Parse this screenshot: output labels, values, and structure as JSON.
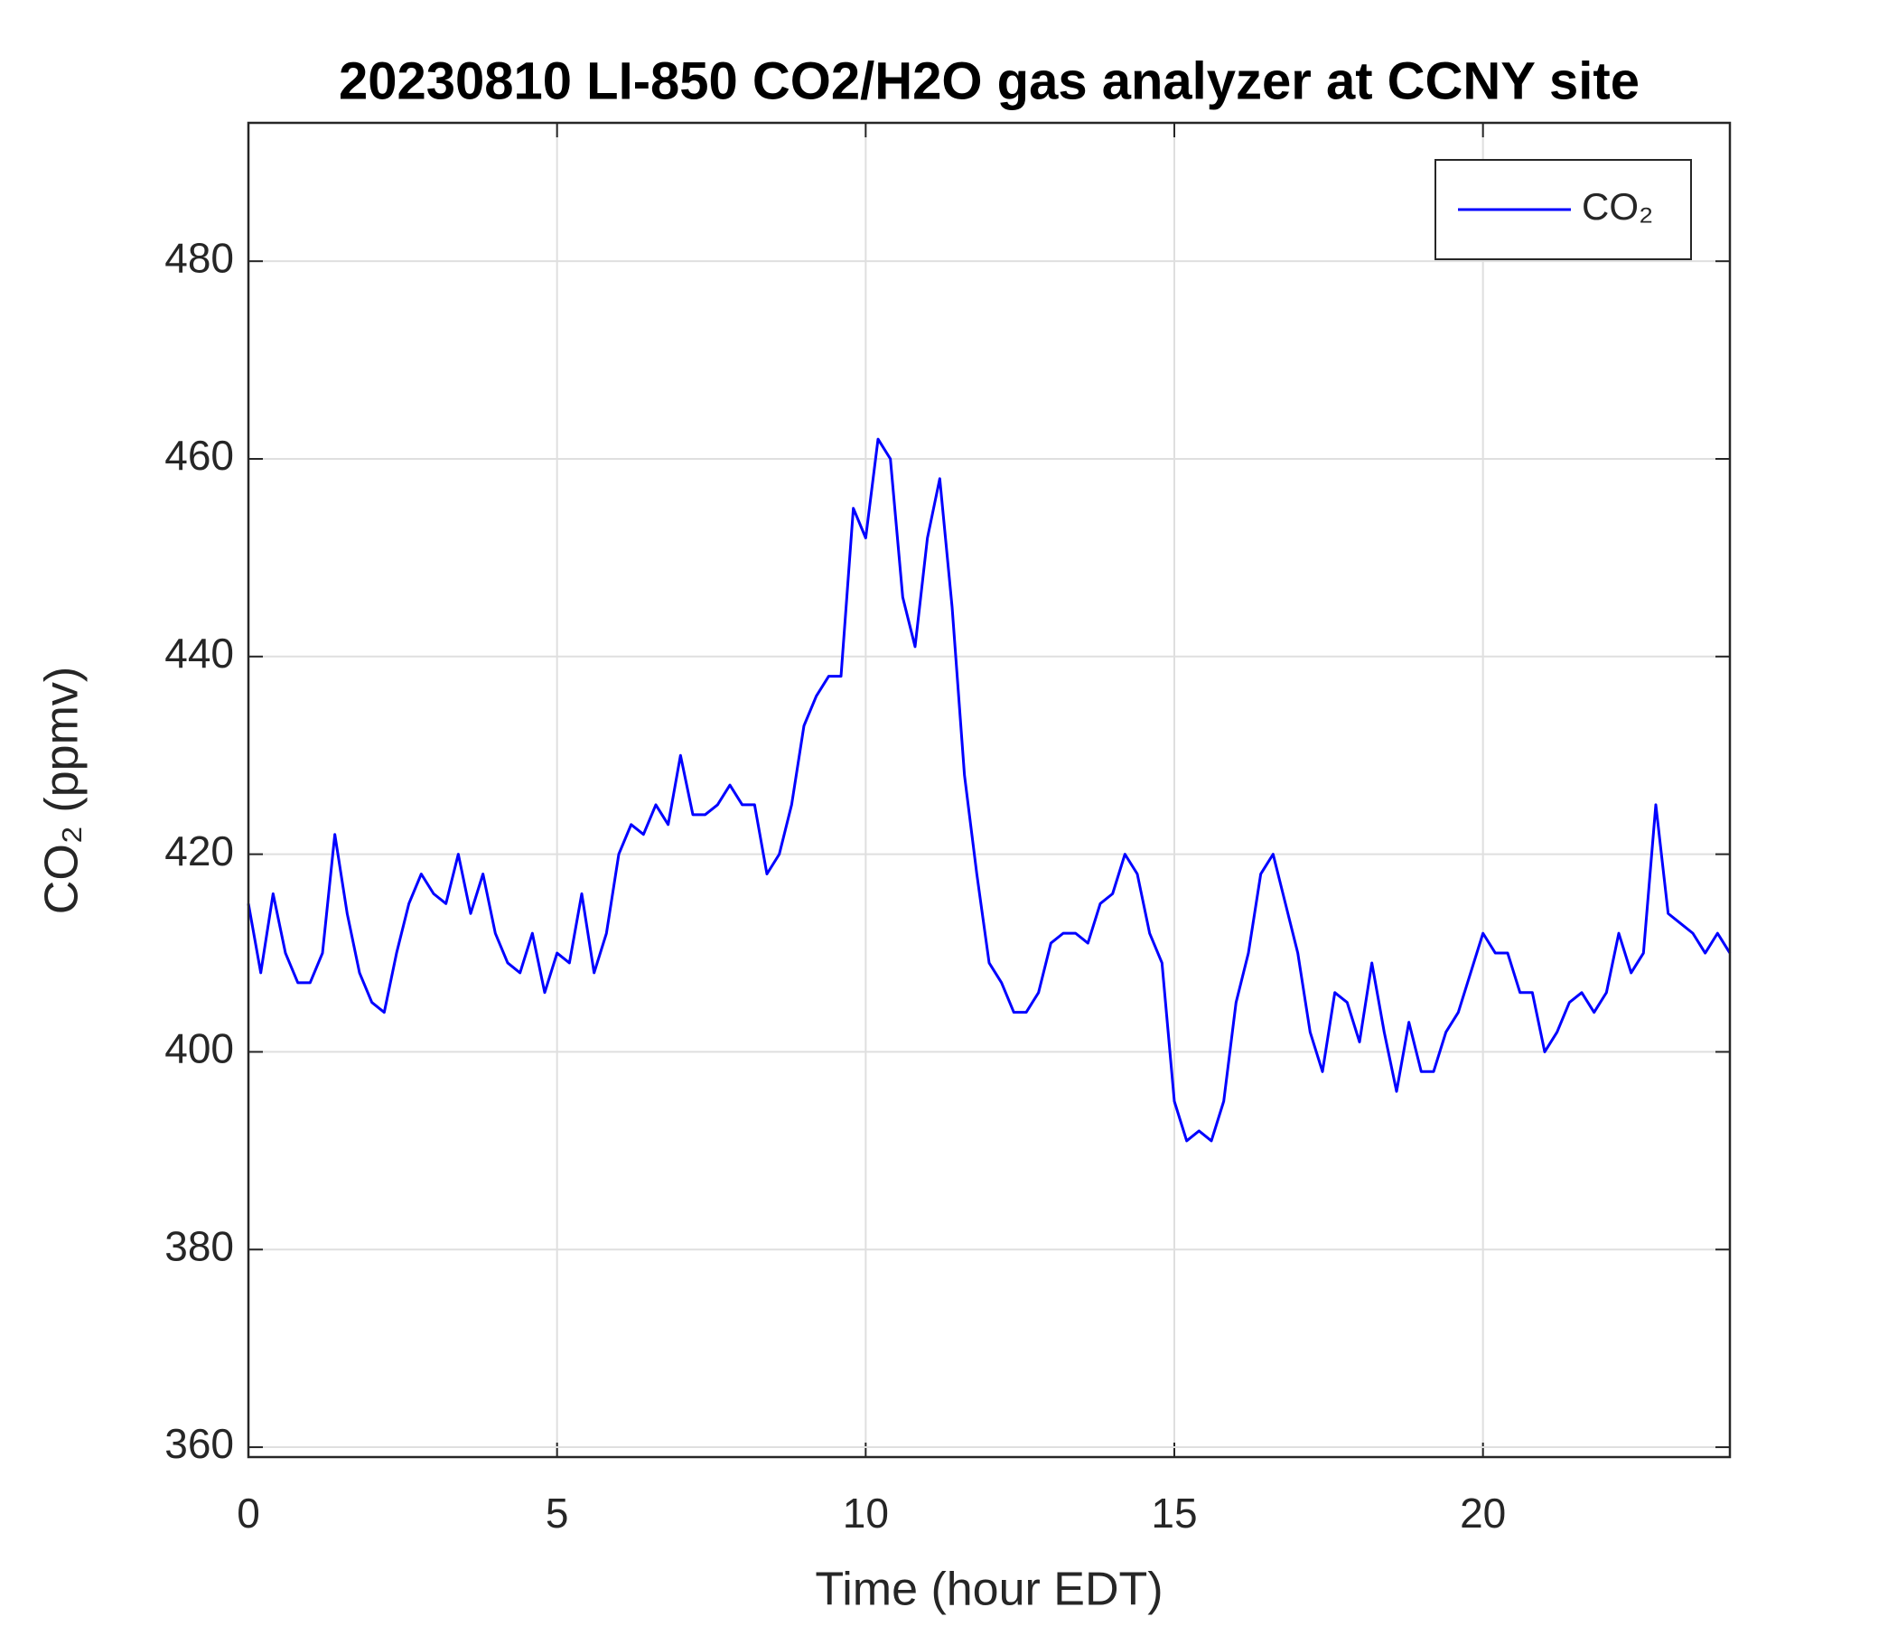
{
  "chart_data": {
    "type": "line",
    "title": "20230810 LI-850 CO2/H2O gas analyzer at CCNY site",
    "x_label": "Time (hour EDT)",
    "y_label": "CO₂ (ppmv)",
    "xlim": [
      0,
      24
    ],
    "xticks": [
      0,
      5,
      10,
      15,
      20
    ],
    "ylim": [
      359,
      494
    ],
    "yticks": [
      360,
      380,
      400,
      420,
      440,
      460,
      480
    ],
    "grid": true,
    "legend": "northeast",
    "x": [
      0,
      0.2,
      0.4,
      0.6,
      0.8,
      1,
      1.2,
      1.4,
      1.6,
      1.8,
      2,
      2.2,
      2.4,
      2.6,
      2.8,
      3,
      3.2,
      3.4,
      3.6,
      3.8,
      4,
      4.2,
      4.4,
      4.6,
      4.8,
      5,
      5.2,
      5.4,
      5.6,
      5.8,
      6,
      6.2,
      6.4,
      6.6,
      6.8,
      7,
      7.2,
      7.4,
      7.6,
      7.8,
      8,
      8.2,
      8.4,
      8.6,
      8.8,
      9,
      9.2,
      9.4,
      9.6,
      9.8,
      10,
      10.2,
      10.4,
      10.6,
      10.8,
      11,
      11.2,
      11.4,
      11.6,
      11.8,
      12,
      12.2,
      12.4,
      12.6,
      12.8,
      13,
      13.2,
      13.4,
      13.6,
      13.8,
      14,
      14.2,
      14.4,
      14.6,
      14.8,
      15,
      15.2,
      15.4,
      15.6,
      15.8,
      16,
      16.2,
      16.4,
      16.6,
      16.8,
      17,
      17.2,
      17.4,
      17.6,
      17.8,
      18,
      18.2,
      18.4,
      18.6,
      18.8,
      19,
      19.2,
      19.4,
      19.6,
      19.8,
      20,
      20.2,
      20.4,
      20.6,
      20.8,
      21,
      21.2,
      21.4,
      21.6,
      21.8,
      22,
      22.2,
      22.4,
      22.6,
      22.8,
      23,
      23.2,
      23.4,
      23.6,
      23.8,
      24
    ],
    "series": [
      {
        "name": "CO₂",
        "color": "#0000ff",
        "values": [
          415,
          408,
          416,
          410,
          407,
          407,
          410,
          422,
          414,
          408,
          405,
          404,
          410,
          415,
          418,
          416,
          415,
          420,
          414,
          418,
          412,
          409,
          408,
          412,
          406,
          410,
          409,
          416,
          408,
          412,
          420,
          423,
          422,
          425,
          423,
          430,
          424,
          424,
          425,
          427,
          425,
          425,
          418,
          420,
          425,
          433,
          436,
          438,
          438,
          455,
          452,
          462,
          460,
          446,
          441,
          452,
          458,
          445,
          428,
          418,
          409,
          407,
          404,
          404,
          406,
          411,
          412,
          412,
          411,
          415,
          416,
          420,
          418,
          412,
          409,
          395,
          391,
          392,
          391,
          395,
          405,
          410,
          418,
          420,
          415,
          410,
          402,
          398,
          406,
          405,
          401,
          409,
          402,
          396,
          403,
          398,
          398,
          402,
          404,
          408,
          412,
          410,
          410,
          406,
          406,
          400,
          402,
          405,
          406,
          404,
          406,
          412,
          408,
          410,
          425,
          414,
          413,
          412,
          410,
          412,
          410
        ]
      }
    ]
  }
}
